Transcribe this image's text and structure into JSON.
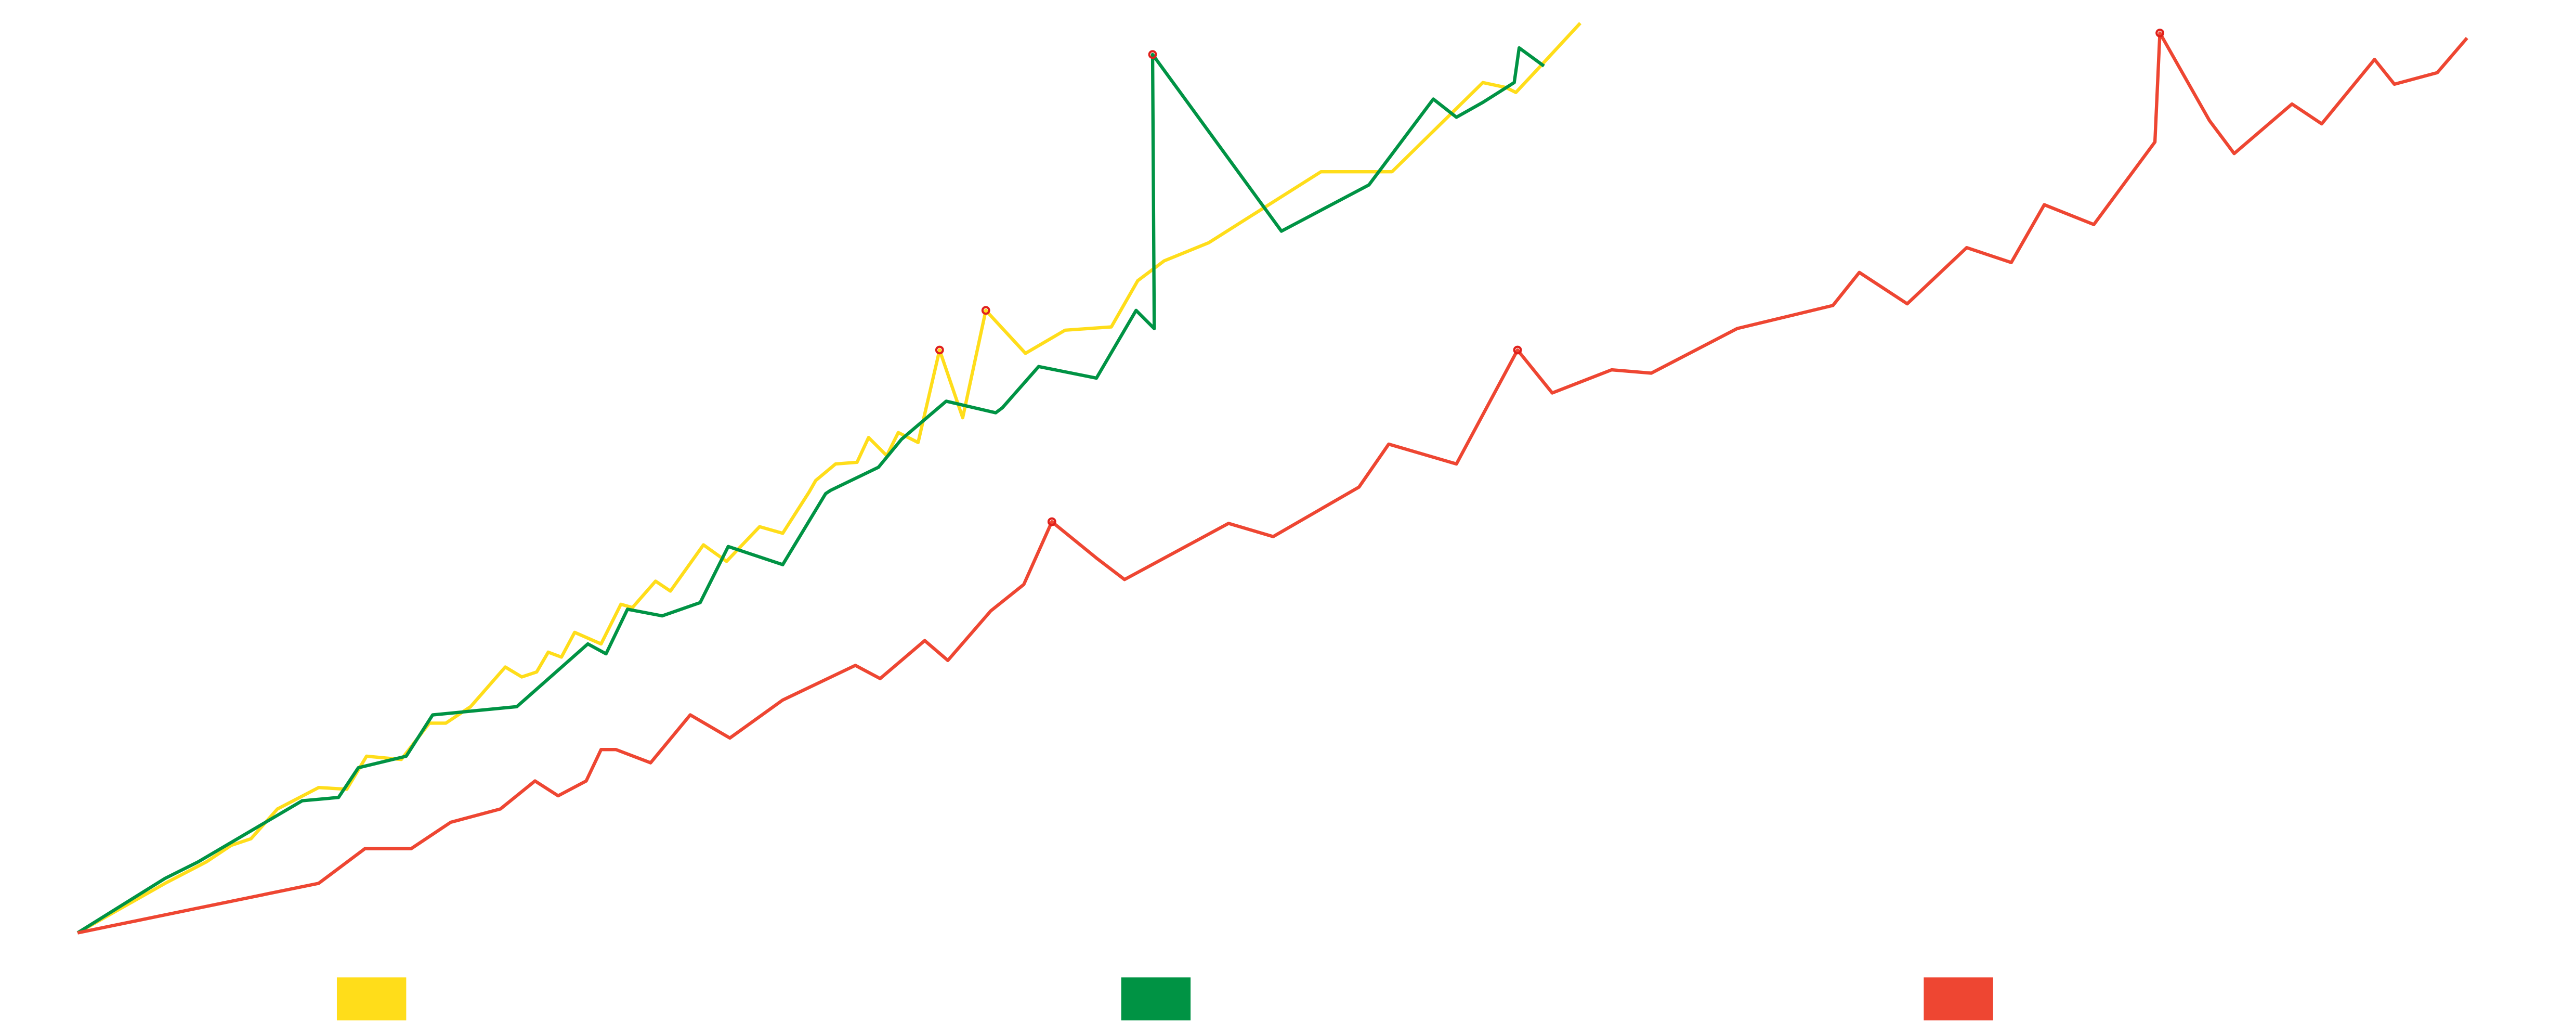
{
  "chart_data": {
    "type": "line",
    "xlim": [
      0,
      1560
    ],
    "ylim": [
      0,
      565
    ],
    "series": [
      {
        "color": "#FFDD1A",
        "x": [
          47,
          100,
          125,
          140,
          152,
          168,
          193,
          210,
          222,
          243,
          260,
          270,
          285,
          306,
          316,
          325,
          332,
          340,
          348,
          364,
          376,
          383,
          397,
          406,
          426,
          440,
          460,
          474,
          490,
          494,
          506,
          519,
          526,
          537,
          544,
          556,
          569,
          583,
          597,
          621,
          645,
          673,
          689,
          705,
          732,
          800,
          843,
          898,
          912,
          918,
          932,
          957
        ],
        "values": [
          0,
          30,
          43,
          53,
          57,
          75,
          88,
          87,
          107,
          105,
          127,
          127,
          137,
          161,
          155,
          158,
          170,
          167,
          182,
          175,
          199,
          197,
          213,
          207,
          235,
          225,
          246,
          242,
          267,
          274,
          284,
          285,
          300,
          289,
          303,
          297,
          353,
          312,
          377,
          351,
          365,
          367,
          395,
          407,
          418,
          461,
          461,
          515,
          512,
          509,
          524,
          551
        ],
        "highlights": [
          36,
          38
        ]
      },
      {
        "color": "#009344",
        "x": [
          47,
          100,
          120,
          183,
          205,
          217,
          246,
          262,
          313,
          356,
          367,
          380,
          401,
          424,
          441,
          474,
          500,
          503,
          532,
          546,
          573,
          603,
          607,
          629,
          664,
          688,
          699,
          698,
          776,
          829,
          868,
          882,
          898,
          917,
          920,
          935
        ],
        "values": [
          0,
          33,
          43,
          80,
          82,
          100,
          107,
          132,
          137,
          175,
          169,
          196,
          192,
          200,
          234,
          223,
          266,
          268,
          282,
          299,
          322,
          315,
          318,
          343,
          336,
          377,
          366,
          532,
          425,
          453,
          505,
          494,
          503,
          515,
          536,
          525
        ],
        "highlights": [
          27
        ]
      },
      {
        "color": "#EE4632",
        "x": [
          47,
          193,
          221,
          249,
          273,
          303,
          324,
          338,
          355,
          364,
          373,
          394,
          418,
          442,
          474,
          518,
          533,
          560,
          574,
          600,
          620,
          637,
          664,
          681,
          744,
          771,
          823,
          841,
          882,
          919,
          940,
          976,
          1000,
          1052,
          1110,
          1126,
          1155,
          1191,
          1218,
          1238,
          1268,
          1305,
          1308,
          1338,
          1353,
          1388,
          1406,
          1438,
          1450,
          1476,
          1494
        ],
        "values": [
          0,
          30,
          51,
          51,
          67,
          75,
          92,
          83,
          92,
          111,
          111,
          103,
          132,
          118,
          141,
          162,
          154,
          177,
          165,
          195,
          211,
          249,
          227,
          214,
          248,
          240,
          270,
          296,
          284,
          353,
          327,
          341,
          339,
          366,
          380,
          400,
          381,
          415,
          406,
          441,
          429,
          479,
          545,
          492,
          472,
          502,
          490,
          529,
          514,
          521,
          542
        ],
        "highlights": [
          21,
          29,
          42
        ]
      }
    ]
  }
}
